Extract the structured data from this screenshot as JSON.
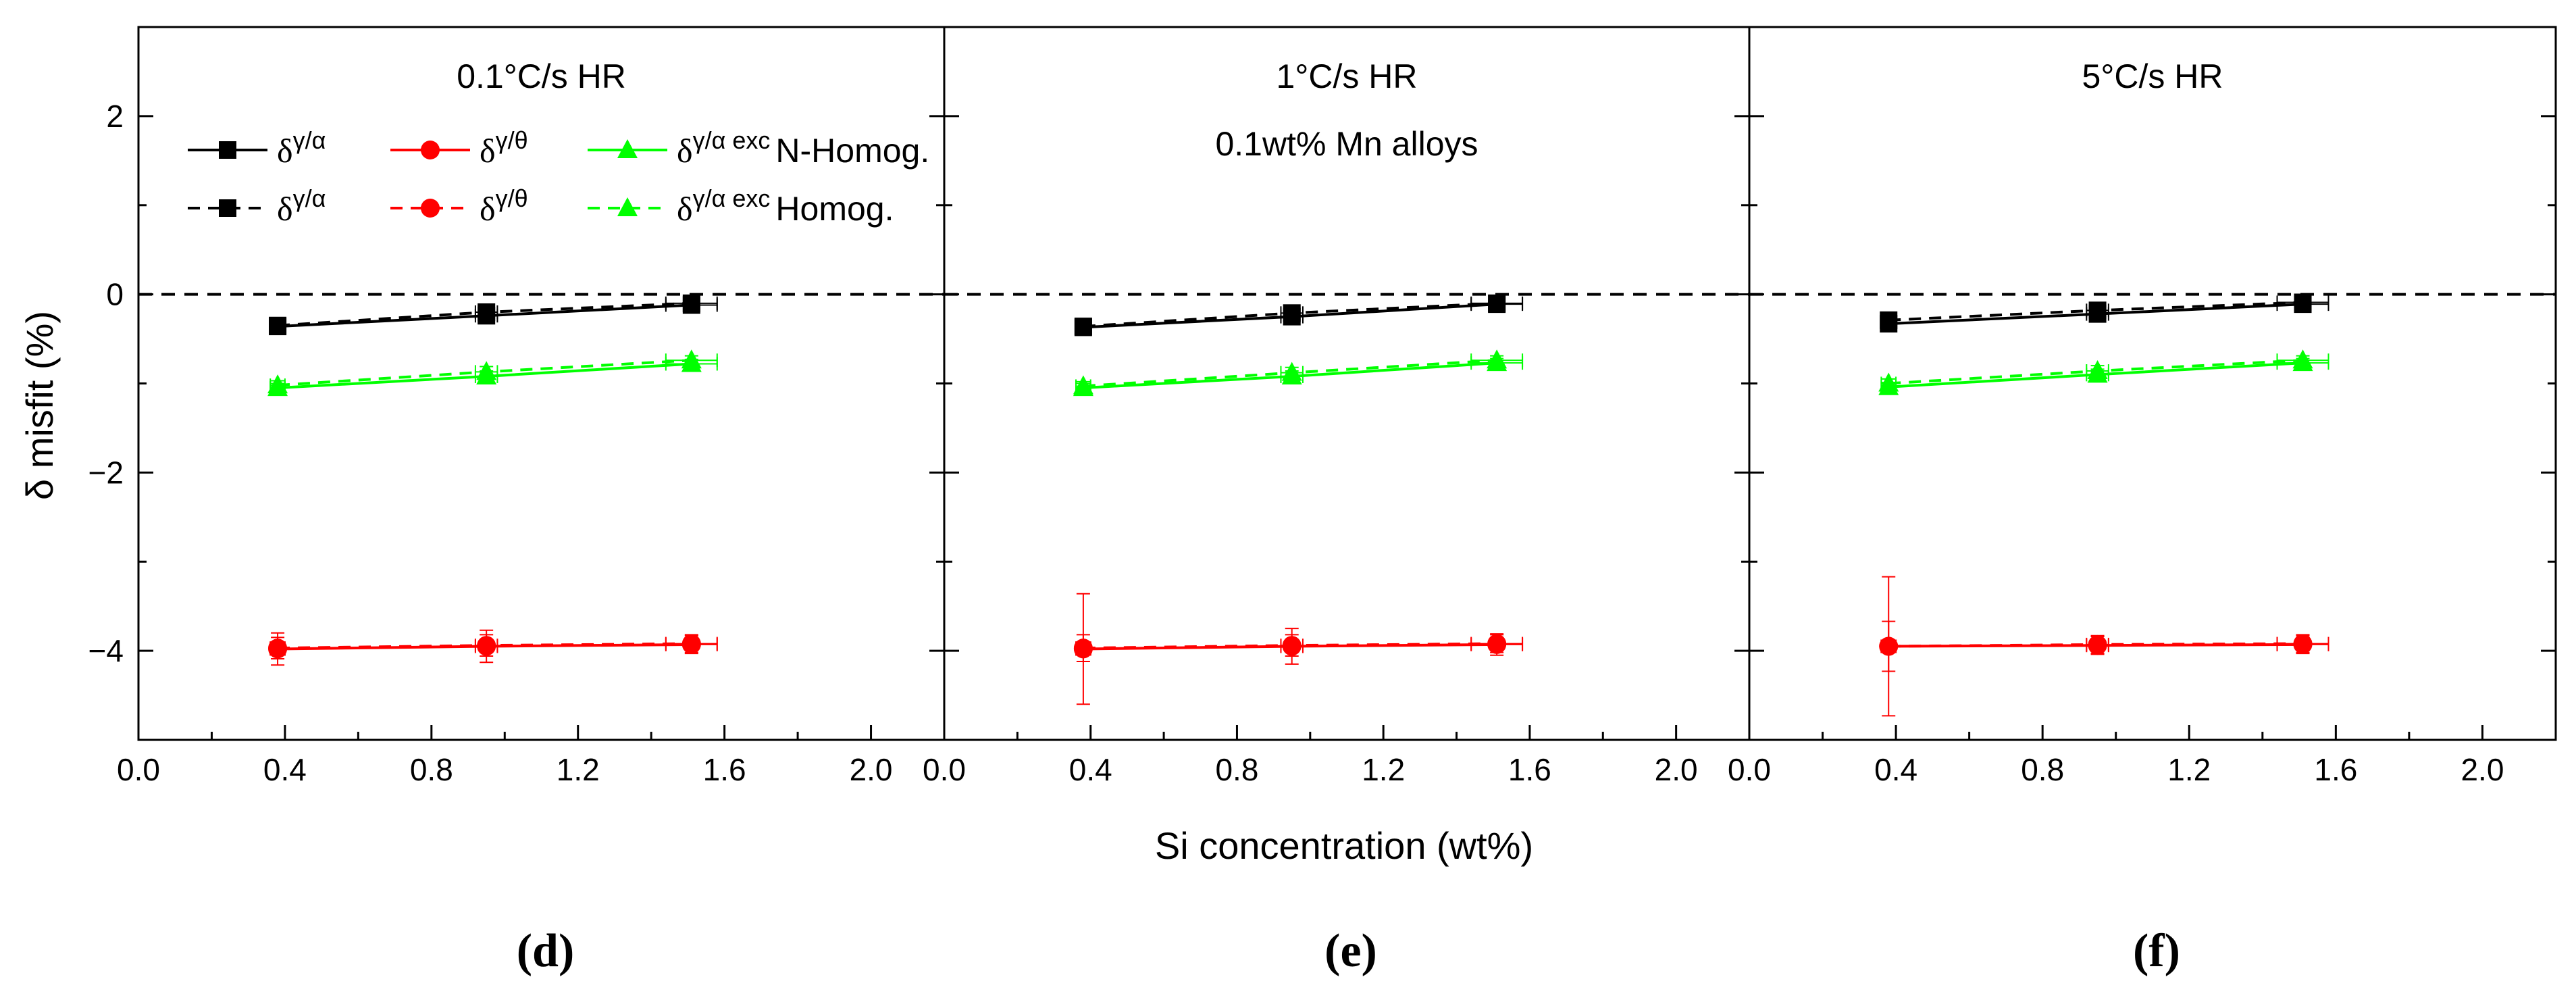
{
  "figure": {
    "ylabel": "δ misfit (%)",
    "xlabel": "Si concentration (wt%)",
    "legend": {
      "row1_suffix": "N-Homog.",
      "row2_suffix": "Homog.",
      "entries": [
        {
          "symbol": "δ",
          "sup": "γ/α",
          "color": "#000000",
          "marker": "square"
        },
        {
          "symbol": "δ",
          "sup": "γ/θ",
          "color": "#ff0000",
          "marker": "circle"
        },
        {
          "symbol": "δ",
          "sup": "γ/α exc",
          "color": "#00ff00",
          "marker": "triangle"
        }
      ]
    }
  },
  "chart_data": [
    {
      "type": "line",
      "panel_label": "d",
      "title": "0.1°C/s HR",
      "annotation": "",
      "x_ticks": [
        "0.0",
        "0.4",
        "0.8",
        "1.2",
        "1.6",
        "2.0"
      ],
      "y_ticks": [
        "2",
        "0",
        "−2",
        "−4"
      ],
      "xlim": [
        0.0,
        2.2
      ],
      "ylim": [
        -5,
        3
      ],
      "reference_line_y": 0,
      "series": [
        {
          "group": "γ/α N-Homog.",
          "color": "#000000",
          "marker": "square",
          "dashed": false,
          "x": [
            0.38,
            0.95,
            1.51
          ],
          "y": [
            -0.36,
            -0.24,
            -0.12
          ],
          "yerr": [
            0.05,
            0.05,
            0.04
          ],
          "xerr": [
            0.02,
            0.03,
            0.07
          ]
        },
        {
          "group": "γ/α Homog.",
          "color": "#000000",
          "marker": "square",
          "dashed": true,
          "x": [
            0.38,
            0.95,
            1.51
          ],
          "y": [
            -0.35,
            -0.2,
            -0.1
          ],
          "yerr": [
            0.05,
            0.05,
            0.04
          ],
          "xerr": [
            0.02,
            0.03,
            0.07
          ]
        },
        {
          "group": "γ/θ N-Homog.",
          "color": "#ff0000",
          "marker": "circle",
          "dashed": false,
          "x": [
            0.38,
            0.95,
            1.51
          ],
          "y": [
            -3.98,
            -3.95,
            -3.93
          ],
          "yerr": [
            0.18,
            0.18,
            0.1
          ],
          "xerr": [
            0.02,
            0.03,
            0.07
          ]
        },
        {
          "group": "γ/θ Homog.",
          "color": "#ff0000",
          "marker": "circle",
          "dashed": true,
          "x": [
            0.38,
            0.95,
            1.51
          ],
          "y": [
            -3.97,
            -3.94,
            -3.92
          ],
          "yerr": [
            0.12,
            0.12,
            0.1
          ],
          "xerr": [
            0.02,
            0.03,
            0.07
          ]
        },
        {
          "group": "γ/α exc N-Homog.",
          "color": "#00ff00",
          "marker": "triangle",
          "dashed": false,
          "x": [
            0.38,
            0.95,
            1.51
          ],
          "y": [
            -1.05,
            -0.92,
            -0.78
          ],
          "yerr": [
            0.05,
            0.06,
            0.05
          ],
          "xerr": [
            0.02,
            0.03,
            0.07
          ]
        },
        {
          "group": "γ/α exc Homog.",
          "color": "#00ff00",
          "marker": "triangle",
          "dashed": true,
          "x": [
            0.38,
            0.95,
            1.51
          ],
          "y": [
            -1.02,
            -0.87,
            -0.74
          ],
          "yerr": [
            0.05,
            0.06,
            0.05
          ],
          "xerr": [
            0.02,
            0.03,
            0.07
          ]
        }
      ]
    },
    {
      "type": "line",
      "panel_label": "e",
      "title": "1°C/s HR",
      "annotation": "0.1wt% Mn alloys",
      "x_ticks": [
        "0.0",
        "0.4",
        "0.8",
        "1.2",
        "1.6",
        "2.0"
      ],
      "y_ticks": [
        "2",
        "0",
        "−2",
        "−4"
      ],
      "xlim": [
        0.0,
        2.2
      ],
      "ylim": [
        -5,
        3
      ],
      "reference_line_y": 0,
      "series": [
        {
          "group": "γ/α N-Homog.",
          "color": "#000000",
          "marker": "square",
          "dashed": false,
          "x": [
            0.38,
            0.95,
            1.51
          ],
          "y": [
            -0.37,
            -0.25,
            -0.11
          ],
          "yerr": [
            0.04,
            0.05,
            0.04
          ],
          "xerr": [
            0.02,
            0.03,
            0.07
          ]
        },
        {
          "group": "γ/α Homog.",
          "color": "#000000",
          "marker": "square",
          "dashed": true,
          "x": [
            0.38,
            0.95,
            1.51
          ],
          "y": [
            -0.36,
            -0.21,
            -0.1
          ],
          "yerr": [
            0.04,
            0.05,
            0.04
          ],
          "xerr": [
            0.02,
            0.03,
            0.07
          ]
        },
        {
          "group": "γ/θ N-Homog.",
          "color": "#ff0000",
          "marker": "circle",
          "dashed": false,
          "x": [
            0.38,
            0.95,
            1.51
          ],
          "y": [
            -3.98,
            -3.95,
            -3.93
          ],
          "yerr": [
            0.62,
            0.2,
            0.12
          ],
          "xerr": [
            0.02,
            0.03,
            0.07
          ]
        },
        {
          "group": "γ/θ Homog.",
          "color": "#ff0000",
          "marker": "circle",
          "dashed": true,
          "x": [
            0.38,
            0.95,
            1.51
          ],
          "y": [
            -3.97,
            -3.94,
            -3.92
          ],
          "yerr": [
            0.15,
            0.12,
            0.1
          ],
          "xerr": [
            0.02,
            0.03,
            0.07
          ]
        },
        {
          "group": "γ/α exc N-Homog.",
          "color": "#00ff00",
          "marker": "triangle",
          "dashed": false,
          "x": [
            0.38,
            0.95,
            1.51
          ],
          "y": [
            -1.05,
            -0.92,
            -0.77
          ],
          "yerr": [
            0.05,
            0.06,
            0.05
          ],
          "xerr": [
            0.02,
            0.03,
            0.07
          ]
        },
        {
          "group": "γ/α exc Homog.",
          "color": "#00ff00",
          "marker": "triangle",
          "dashed": true,
          "x": [
            0.38,
            0.95,
            1.51
          ],
          "y": [
            -1.03,
            -0.88,
            -0.74
          ],
          "yerr": [
            0.05,
            0.06,
            0.05
          ],
          "xerr": [
            0.02,
            0.03,
            0.07
          ]
        }
      ]
    },
    {
      "type": "line",
      "panel_label": "f",
      "title": "5°C/s HR",
      "annotation": "",
      "x_ticks": [
        "0.0",
        "0.4",
        "0.8",
        "1.2",
        "1.6",
        "2.0"
      ],
      "y_ticks": [
        "2",
        "0",
        "−2",
        "−4"
      ],
      "xlim": [
        0.0,
        2.2
      ],
      "ylim": [
        -5,
        3
      ],
      "reference_line_y": 0,
      "series": [
        {
          "group": "γ/α N-Homog.",
          "color": "#000000",
          "marker": "square",
          "dashed": false,
          "x": [
            0.38,
            0.95,
            1.51
          ],
          "y": [
            -0.33,
            -0.22,
            -0.11
          ],
          "yerr": [
            0.08,
            0.05,
            0.04
          ],
          "xerr": [
            0.02,
            0.03,
            0.07
          ]
        },
        {
          "group": "γ/α Homog.",
          "color": "#000000",
          "marker": "square",
          "dashed": true,
          "x": [
            0.38,
            0.95,
            1.51
          ],
          "y": [
            -0.29,
            -0.18,
            -0.09
          ],
          "yerr": [
            0.08,
            0.05,
            0.04
          ],
          "xerr": [
            0.02,
            0.03,
            0.07
          ]
        },
        {
          "group": "γ/θ N-Homog.",
          "color": "#ff0000",
          "marker": "circle",
          "dashed": false,
          "x": [
            0.38,
            0.95,
            1.51
          ],
          "y": [
            -3.95,
            -3.94,
            -3.93
          ],
          "yerr": [
            0.78,
            0.1,
            0.1
          ],
          "xerr": [
            0.02,
            0.03,
            0.07
          ]
        },
        {
          "group": "γ/θ Homog.",
          "color": "#ff0000",
          "marker": "circle",
          "dashed": true,
          "x": [
            0.38,
            0.95,
            1.51
          ],
          "y": [
            -3.95,
            -3.93,
            -3.92
          ],
          "yerr": [
            0.28,
            0.1,
            0.1
          ],
          "xerr": [
            0.02,
            0.03,
            0.07
          ]
        },
        {
          "group": "γ/α exc N-Homog.",
          "color": "#00ff00",
          "marker": "triangle",
          "dashed": false,
          "x": [
            0.38,
            0.95,
            1.51
          ],
          "y": [
            -1.04,
            -0.9,
            -0.77
          ],
          "yerr": [
            0.05,
            0.06,
            0.05
          ],
          "xerr": [
            0.02,
            0.03,
            0.07
          ]
        },
        {
          "group": "γ/α exc Homog.",
          "color": "#00ff00",
          "marker": "triangle",
          "dashed": true,
          "x": [
            0.38,
            0.95,
            1.51
          ],
          "y": [
            -1.0,
            -0.86,
            -0.74
          ],
          "yerr": [
            0.05,
            0.06,
            0.05
          ],
          "xerr": [
            0.02,
            0.03,
            0.07
          ]
        }
      ]
    }
  ]
}
